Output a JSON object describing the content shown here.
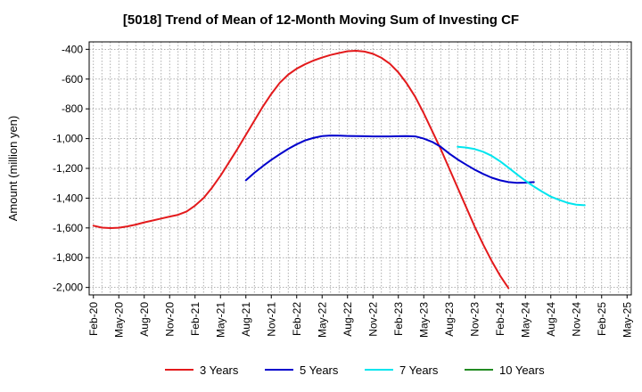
{
  "chart_data": {
    "type": "line",
    "title": "[5018]  Trend of Mean of 12-Month Moving Sum of Investing CF",
    "xlabel": "",
    "ylabel": "Amount (million yen)",
    "ylim": [
      -2050,
      -350
    ],
    "yticks": [
      -400,
      -600,
      -800,
      -1000,
      -1200,
      -1400,
      -1600,
      -1800,
      -2000
    ],
    "ytick_labels": [
      "-400",
      "-600",
      "-800",
      "-1,000",
      "-1,200",
      "-1,400",
      "-1,600",
      "-1,800",
      "-2,000"
    ],
    "x_count": 64,
    "xtick_indices": [
      0,
      3,
      6,
      9,
      12,
      15,
      18,
      21,
      24,
      27,
      30,
      33,
      36,
      39,
      42,
      45,
      48,
      51,
      54,
      57,
      60,
      63
    ],
    "xtick_labels": [
      "Feb-20",
      "May-20",
      "Aug-20",
      "Nov-20",
      "Feb-21",
      "May-21",
      "Aug-21",
      "Nov-21",
      "Feb-22",
      "May-22",
      "Aug-22",
      "Nov-22",
      "Feb-23",
      "May-23",
      "Aug-23",
      "Nov-23",
      "Feb-24",
      "May-24",
      "Aug-24",
      "Nov-24",
      "Feb-25",
      "May-25"
    ],
    "grid": true,
    "legend_position": "bottom",
    "series": [
      {
        "name": "3 Years",
        "color": "#e31a1c",
        "start": 0,
        "values": [
          -1585,
          -1598,
          -1601,
          -1599,
          -1590,
          -1578,
          -1563,
          -1550,
          -1537,
          -1524,
          -1512,
          -1490,
          -1450,
          -1400,
          -1330,
          -1250,
          -1160,
          -1070,
          -975,
          -880,
          -785,
          -700,
          -625,
          -570,
          -530,
          -500,
          -475,
          -455,
          -438,
          -425,
          -413,
          -410,
          -415,
          -430,
          -457,
          -497,
          -555,
          -630,
          -720,
          -830,
          -950,
          -1070,
          -1200,
          -1330,
          -1460,
          -1590,
          -1710,
          -1820,
          -1920,
          -2005
        ]
      },
      {
        "name": "5 Years",
        "color": "#0000cc",
        "start": 18,
        "values": [
          -1280,
          -1230,
          -1185,
          -1143,
          -1105,
          -1069,
          -1038,
          -1012,
          -995,
          -983,
          -979,
          -980,
          -982,
          -983,
          -984,
          -985,
          -985,
          -985,
          -984,
          -983,
          -985,
          -1000,
          -1022,
          -1055,
          -1100,
          -1140,
          -1175,
          -1208,
          -1237,
          -1262,
          -1280,
          -1292,
          -1297,
          -1296,
          -1292
        ]
      },
      {
        "name": "7 Years",
        "color": "#00e5ee",
        "start": 43,
        "values": [
          -1055,
          -1060,
          -1070,
          -1088,
          -1115,
          -1152,
          -1195,
          -1240,
          -1283,
          -1322,
          -1357,
          -1390,
          -1412,
          -1432,
          -1444,
          -1448
        ]
      },
      {
        "name": "10 Years",
        "color": "#228b22",
        "start": 0,
        "values": []
      }
    ]
  }
}
